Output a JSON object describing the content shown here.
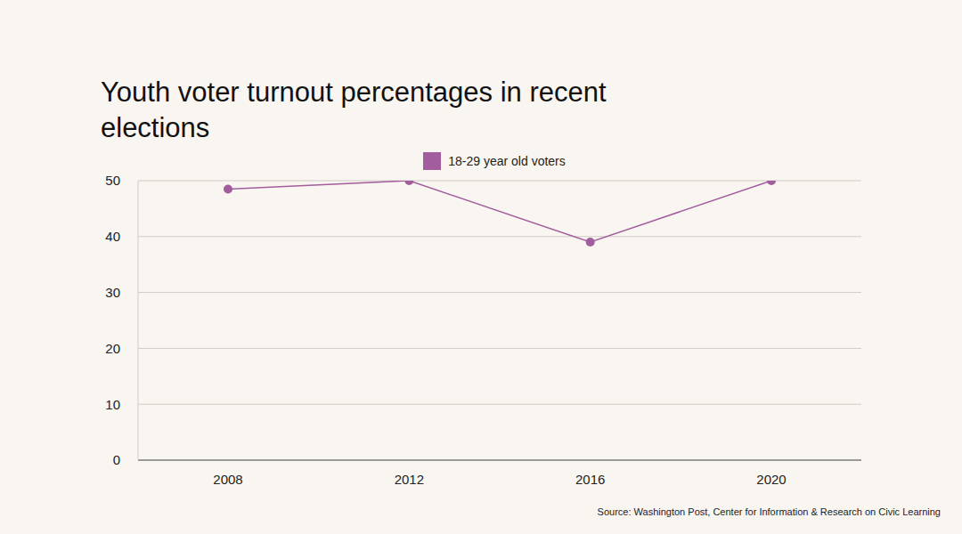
{
  "chart_data": {
    "type": "line",
    "title": "Youth voter turnout percentages in recent elections",
    "source": "Source: Washington Post, Center for Information & Research on Civic Learning",
    "categories": [
      "2008",
      "2012",
      "2016",
      "2020"
    ],
    "series": [
      {
        "name": "18-29 year old voters",
        "color": "#a25d9e",
        "values": [
          48.5,
          50,
          39,
          50
        ]
      }
    ],
    "ylim": [
      0,
      50
    ],
    "yticks": [
      0,
      10,
      20,
      30,
      40,
      50
    ],
    "grid": true,
    "legend": "top"
  }
}
